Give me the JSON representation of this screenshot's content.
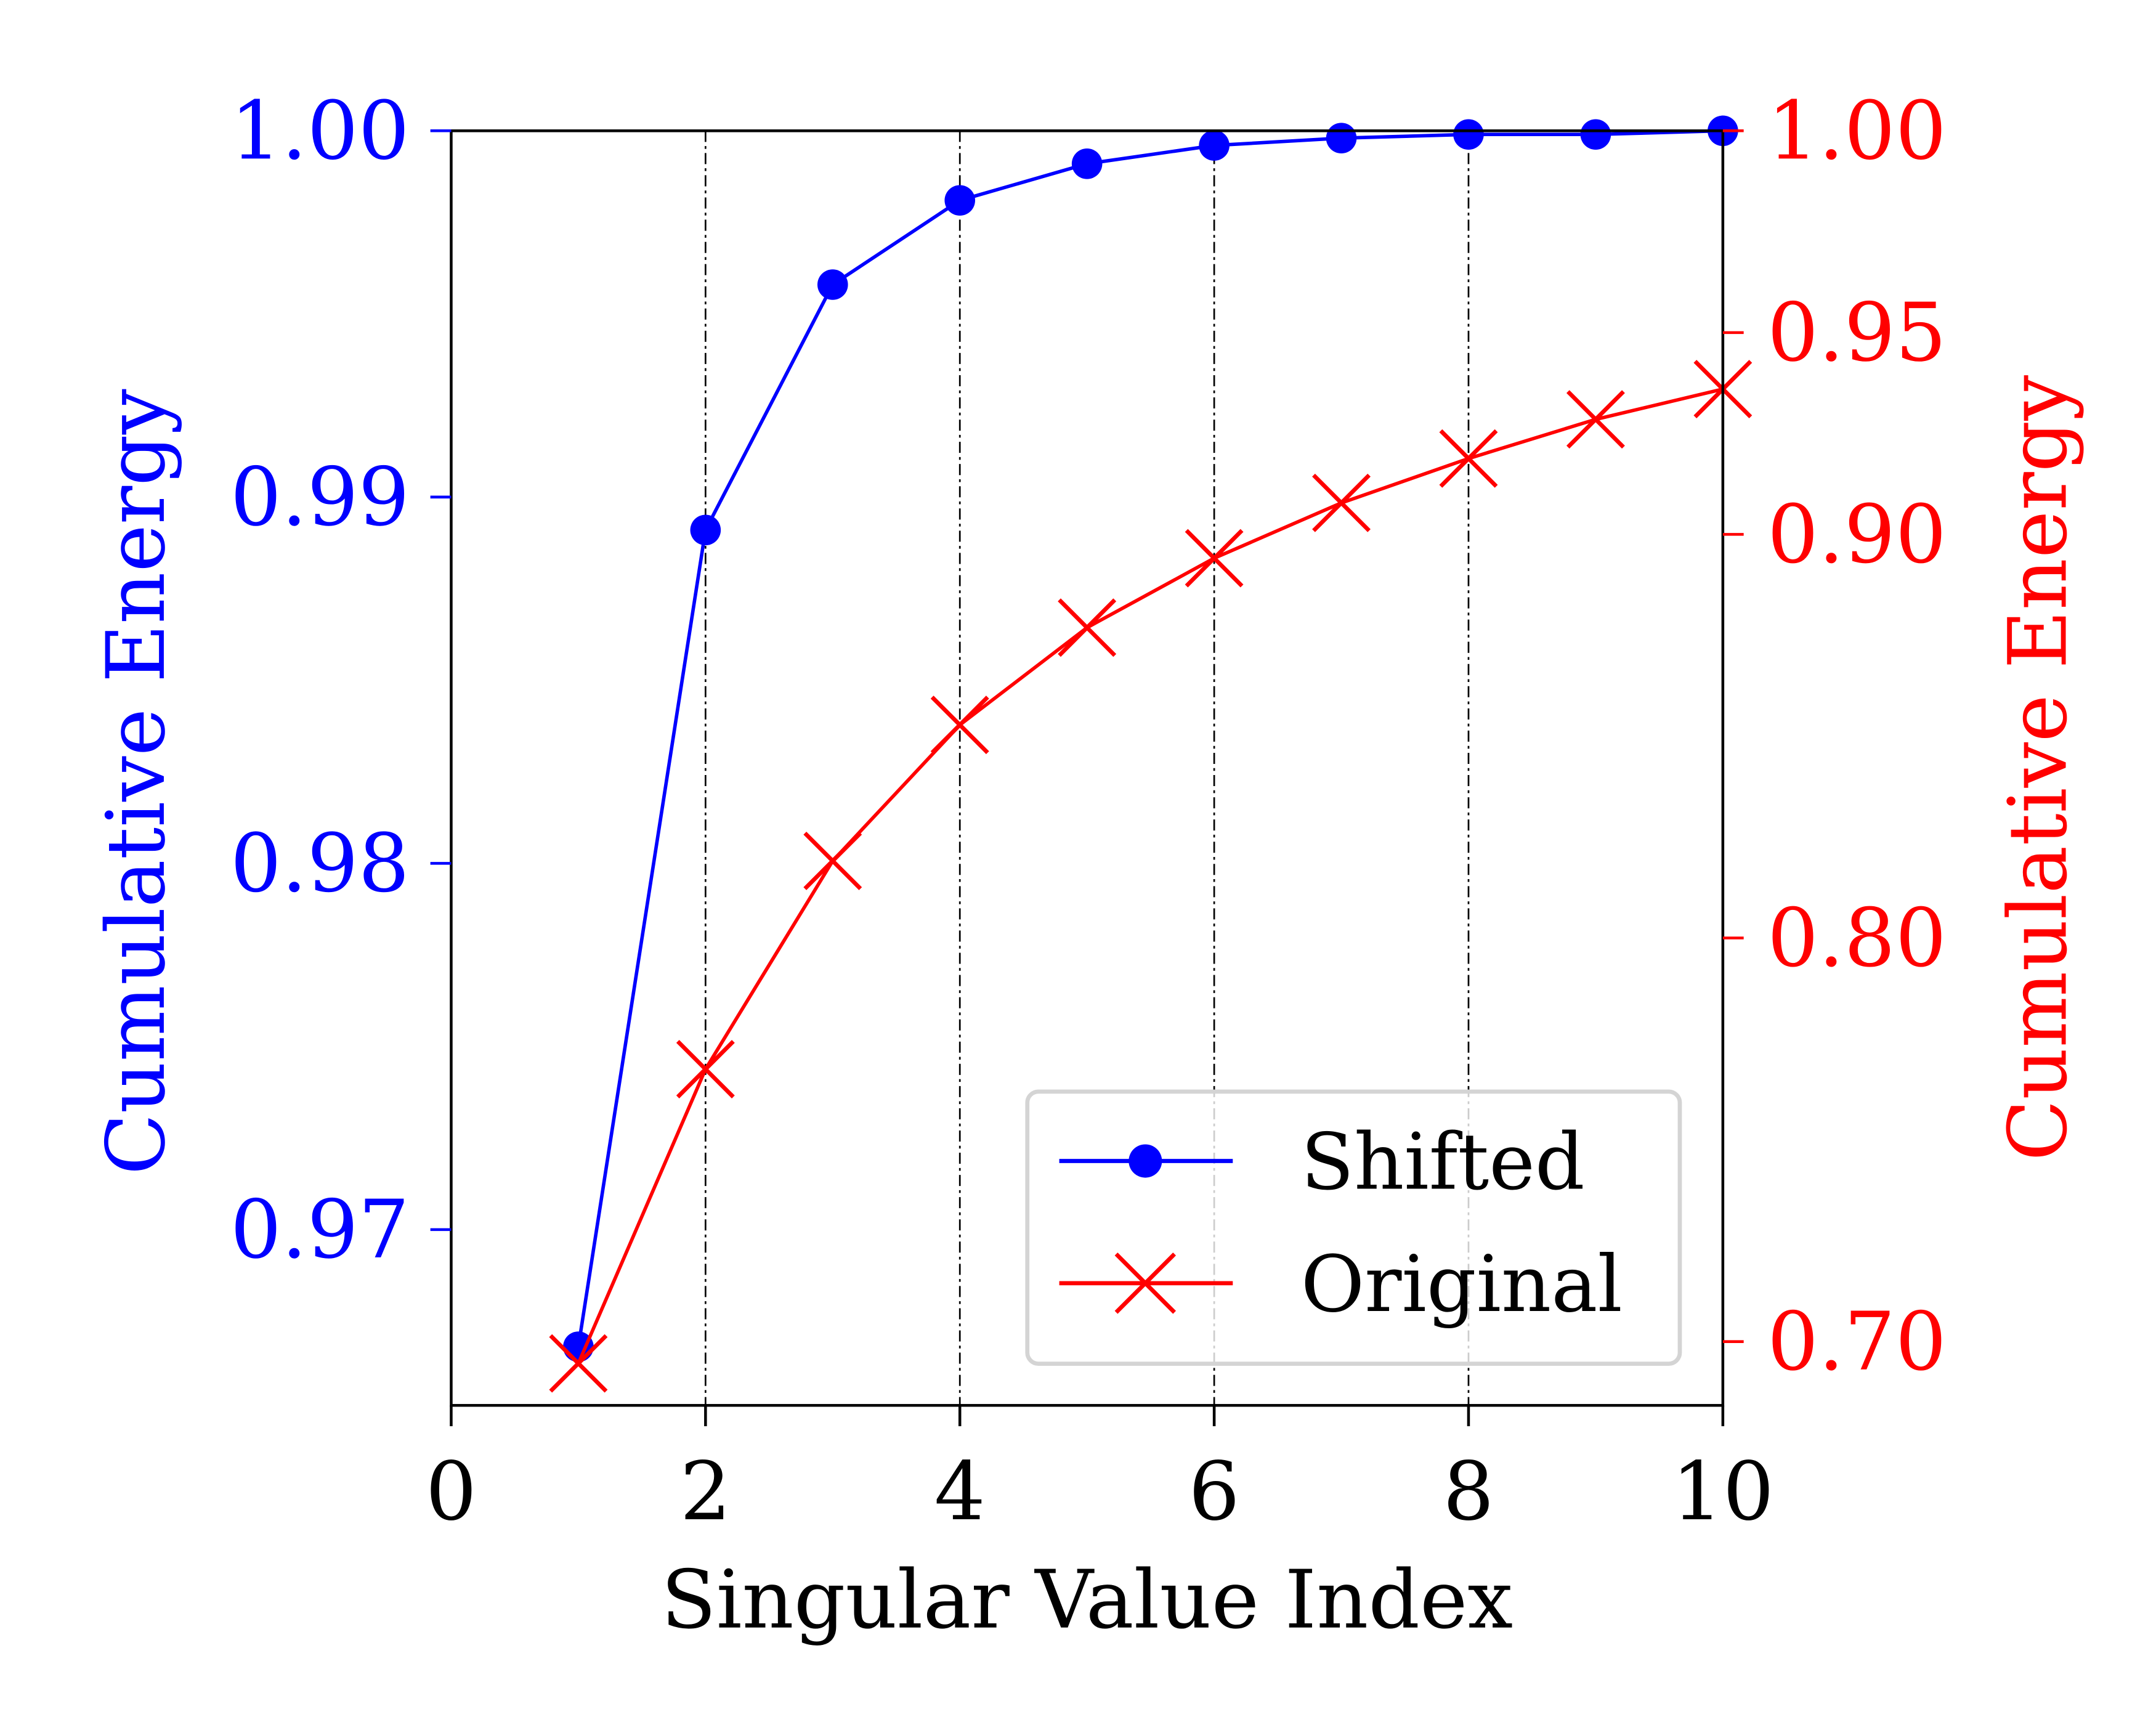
{
  "chart_data": {
    "type": "line",
    "title": "",
    "xlabel": "Singular Value Index",
    "ylabel_left": "Cumulative Energy",
    "ylabel_right": "Cumulative Energy",
    "xlim": [
      0,
      10
    ],
    "ylim_left": [
      0.9652,
      1.0
    ],
    "ylim_right": [
      0.6842,
      1.0
    ],
    "x_ticks": [
      0,
      2,
      4,
      6,
      8,
      10
    ],
    "x_tick_labels": [
      "0",
      "2",
      "4",
      "6",
      "8",
      "10"
    ],
    "y_left_ticks": [
      0.97,
      0.98,
      0.99,
      1.0
    ],
    "y_left_tick_labels": [
      "0.97",
      "0.98",
      "0.99",
      "1.00"
    ],
    "y_right_ticks": [
      0.7,
      0.8,
      0.9,
      0.95,
      1.0
    ],
    "y_right_tick_labels": [
      "0.70",
      "0.80",
      "0.90",
      "0.95",
      "1.00"
    ],
    "vertical_gridlines_at": [
      2,
      4,
      6,
      8
    ],
    "grid": "vertical dash-dot black lines",
    "legend_position": "lower right",
    "x": [
      1,
      2,
      3,
      4,
      5,
      6,
      7,
      8,
      9,
      10
    ],
    "series": [
      {
        "name": "Shifted",
        "axis": "left",
        "color": "#0000ff",
        "marker": "circle",
        "values": [
          0.9668,
          0.9891,
          0.9958,
          0.9981,
          0.9991,
          0.9996,
          0.9998,
          0.9999,
          0.9999,
          1.0
        ]
      },
      {
        "name": "Original",
        "axis": "right",
        "color": "#ff0000",
        "marker": "x",
        "values": [
          0.6946,
          0.7675,
          0.8191,
          0.8528,
          0.8769,
          0.8941,
          0.9078,
          0.9188,
          0.9285,
          0.936
        ]
      }
    ]
  },
  "colors": {
    "left_axis": "#0000ff",
    "right_axis": "#ff0000",
    "frame": "#000000",
    "legend_border": "#d4d4d4"
  }
}
